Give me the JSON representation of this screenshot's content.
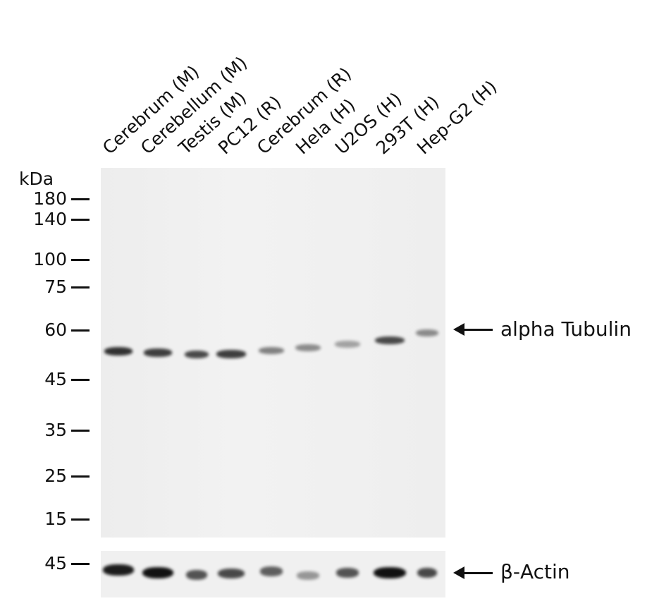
{
  "lanes": [
    {
      "label": "Cerebrum (M)",
      "tubulin_intensity": 0.85,
      "actin_intensity": 0.95
    },
    {
      "label": "Cerebellum (M)",
      "tubulin_intensity": 0.8,
      "actin_intensity": 1.0
    },
    {
      "label": "Testis (M)",
      "tubulin_intensity": 0.75,
      "actin_intensity": 0.7
    },
    {
      "label": "PC12 (R)",
      "tubulin_intensity": 0.8,
      "actin_intensity": 0.75
    },
    {
      "label": "Cerebrum (R)",
      "tubulin_intensity": 0.5,
      "actin_intensity": 0.65
    },
    {
      "label": "Hela (H)",
      "tubulin_intensity": 0.45,
      "actin_intensity": 0.4
    },
    {
      "label": "U2OS (H)",
      "tubulin_intensity": 0.35,
      "actin_intensity": 0.7
    },
    {
      "label": "293T (H)",
      "tubulin_intensity": 0.75,
      "actin_intensity": 1.0
    },
    {
      "label": "Hep-G2 (H)",
      "tubulin_intensity": 0.45,
      "actin_intensity": 0.75
    }
  ],
  "marker_unit": "kDa",
  "markers": [
    "180",
    "140",
    "100",
    "75",
    "60",
    "45",
    "35",
    "25",
    "15"
  ],
  "actin_marker": "45",
  "targets": {
    "main": "alpha Tubulin",
    "loading": "β-Actin"
  },
  "band_color": "#111111"
}
